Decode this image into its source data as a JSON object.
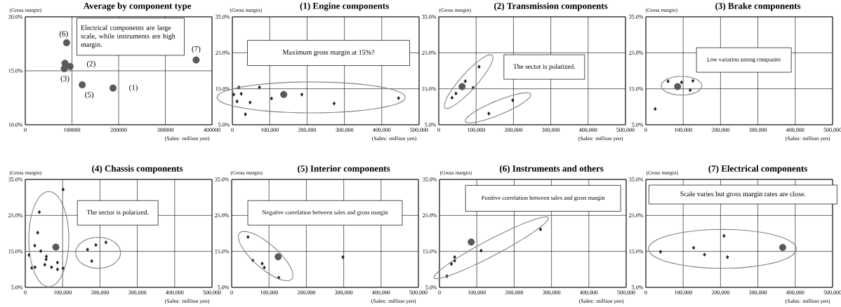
{
  "chart_data": [
    {
      "type": "scatter",
      "title": "Average by component type",
      "xlabel": "(Sales: million yen)",
      "ylabel": "(Gross margin)",
      "xlim": [
        0,
        400000
      ],
      "ylim": [
        10,
        20
      ],
      "xticks": [
        0,
        100000,
        200000,
        300000,
        400000
      ],
      "yticks": [
        {
          "value": 10,
          "label": "10.0%"
        },
        {
          "value": 15,
          "label": "15.0%"
        },
        {
          "value": 20,
          "label": "20.0%"
        }
      ],
      "grid": true,
      "series": [
        {
          "color": "#595959",
          "marker": "circle",
          "x": [
            88500,
            85000,
            96000,
            83500,
            122000,
            188000,
            366000
          ],
          "values": [
            17.6,
            15.7,
            15.4,
            15.2,
            13.7,
            13.4,
            16.0
          ]
        }
      ],
      "annotations": [
        "Electrical components are large scale, while instruments are high margin.",
        {
          "text": "(6)",
          "x": 88500,
          "y": 17.6
        },
        {
          "text": "(2)",
          "x": 96000,
          "y": 15.4
        },
        {
          "text": "(3)",
          "x": 83500,
          "y": 15.2
        },
        {
          "text": "(5)",
          "x": 122000,
          "y": 13.7
        },
        {
          "text": "(1)",
          "x": 188000,
          "y": 13.4
        },
        {
          "text": "(7)",
          "x": 366000,
          "y": 16.0
        }
      ]
    },
    {
      "type": "scatter",
      "title": "(1) Engine components",
      "xlabel": "(Sales: million yen)",
      "ylabel": "(Gross margin)",
      "xlim": [
        0,
        500000
      ],
      "ylim": [
        5,
        35
      ],
      "xticks": [
        0,
        {
          "value": 100000,
          "label": "100,000"
        },
        {
          "value": 200000,
          "label": "200,000"
        },
        {
          "value": 300000,
          "label": "300,000"
        },
        {
          "value": 400000,
          "label": "400,000"
        },
        {
          "value": 500000,
          "label": "500,000"
        }
      ],
      "yticks": [
        {
          "value": 5,
          "label": "5.0%"
        },
        {
          "value": 15,
          "label": "15.0%"
        },
        {
          "value": 25,
          "label": "25.0%"
        },
        {
          "value": 35,
          "label": "35.0%"
        }
      ],
      "grid": true,
      "series": [
        {
          "color": "#1f1f1f",
          "marker": "diamond",
          "x": [
            17500,
            72500,
            3750,
            23750,
            12500,
            47500,
            35000,
            105000,
            186000,
            272500,
            445000
          ],
          "values": [
            15.4,
            15.4,
            13.4,
            13.6,
            11.5,
            11.2,
            7.9,
            12.3,
            13.4,
            10.9,
            12.4
          ]
        },
        {
          "color": "#595959",
          "marker": "circle",
          "x": [
            137500
          ],
          "values": [
            13.4
          ]
        }
      ],
      "annotations": [
        "Maximum gross margin at 15%?"
      ]
    },
    {
      "type": "scatter",
      "title": "(2) Transmission components",
      "xlabel": "(Sales: million yen)",
      "ylabel": "(Gross margin)",
      "xlim": [
        0,
        500000
      ],
      "ylim": [
        5,
        35
      ],
      "xticks": [
        0,
        {
          "value": 100000,
          "label": "100,000"
        },
        {
          "value": 200000,
          "label": "200,000"
        },
        {
          "value": 300000,
          "label": "300,000"
        },
        {
          "value": 400000,
          "label": "400,000"
        },
        {
          "value": 500000,
          "label": "500,000"
        }
      ],
      "yticks": [
        {
          "value": 5,
          "label": "5.0%"
        },
        {
          "value": 15,
          "label": "15.0%"
        },
        {
          "value": 25,
          "label": "25.0%"
        },
        {
          "value": 35,
          "label": "35.0%"
        }
      ],
      "grid": true,
      "series": [
        {
          "color": "#1f1f1f",
          "marker": "diamond",
          "x": [
            35600,
            46000,
            71000,
            92000,
            108000,
            134000,
            198000
          ],
          "values": [
            12.5,
            13.7,
            17.1,
            15.3,
            21.1,
            8.1,
            11.8
          ]
        },
        {
          "color": "#595959",
          "marker": "circle",
          "x": [
            62500
          ],
          "values": [
            15.6
          ]
        }
      ],
      "annotations": [
        "The sector is polarized."
      ]
    },
    {
      "type": "scatter",
      "title": "(3) Brake components",
      "xlabel": "(Sales: million yen)",
      "ylabel": "(Gross margin)",
      "xlim": [
        0,
        500000
      ],
      "ylim": [
        5,
        35
      ],
      "xticks": [
        0,
        {
          "value": 100000,
          "label": "100,000"
        },
        {
          "value": 200000,
          "label": "200,000"
        },
        {
          "value": 300000,
          "label": "300,000"
        },
        {
          "value": 400000,
          "label": "400,000"
        },
        {
          "value": 500000,
          "label": "500,000"
        }
      ],
      "yticks": [
        {
          "value": 5,
          "label": "5.0%"
        },
        {
          "value": 15,
          "label": "15.0%"
        },
        {
          "value": 25,
          "label": "25.0%"
        },
        {
          "value": 35,
          "label": "35.0%"
        }
      ],
      "grid": true,
      "series": [
        {
          "color": "#1f1f1f",
          "marker": "diamond",
          "x": [
            25000,
            59400,
            95600,
            126000,
            118750
          ],
          "values": [
            9.4,
            17.1,
            16.8,
            17.2,
            14.6
          ]
        },
        {
          "color": "#595959",
          "marker": "circle",
          "x": [
            85000
          ],
          "values": [
            15.6
          ]
        }
      ],
      "annotations": [
        "Low variation among companies"
      ]
    },
    {
      "type": "scatter",
      "title": "(4) Chassis components",
      "xlabel": "(Sales: million yen)",
      "ylabel": "(Gross margin)",
      "xlim": [
        0,
        500000
      ],
      "ylim": [
        5,
        35
      ],
      "xticks": [
        0,
        {
          "value": 100000,
          "label": "100,000"
        },
        {
          "value": 200000,
          "label": "200,000"
        },
        {
          "value": 300000,
          "label": "300,000"
        },
        {
          "value": 400000,
          "label": "400,000"
        },
        {
          "value": 500000,
          "label": "500,000"
        }
      ],
      "yticks": [
        {
          "value": 5,
          "label": "5.0%"
        },
        {
          "value": 15,
          "label": "15.0%"
        },
        {
          "value": 25,
          "label": "25.0%"
        },
        {
          "value": 35,
          "label": "35.0%"
        }
      ],
      "grid": true,
      "series": [
        {
          "color": "#1f1f1f",
          "marker": "diamond",
          "x": [
            101400,
            37700,
            33300,
            25400,
            41300,
            10100,
            56500,
            55800,
            52200,
            17400,
            26100,
            70300,
            86200,
            86200,
            101400,
            166700,
            189100,
            216000,
            178000
          ],
          "values": [
            32.2,
            25.9,
            20.2,
            16.6,
            15.1,
            14.0,
            13.6,
            12.8,
            11.3,
            10.4,
            10.6,
            10.6,
            11.9,
            10.0,
            10.3,
            15.5,
            16.8,
            17.5,
            12.3
          ]
        },
        {
          "color": "#595959",
          "marker": "circle",
          "x": [
            81900
          ],
          "values": [
            16.2
          ]
        }
      ],
      "annotations": [
        "The sector is polarized."
      ]
    },
    {
      "type": "scatter",
      "title": "(5) Interior components",
      "xlabel": "(Sales: million yen)",
      "ylabel": "(Gross margin)",
      "xlim": [
        0,
        500000
      ],
      "ylim": [
        5,
        35
      ],
      "xticks": [
        0,
        {
          "value": 100000,
          "label": "100,000"
        },
        {
          "value": 200000,
          "label": "200,000"
        },
        {
          "value": 300000,
          "label": "300,000"
        },
        {
          "value": 400000,
          "label": "400,000"
        },
        {
          "value": 500000,
          "label": "500,000"
        }
      ],
      "yticks": [
        {
          "value": 5,
          "label": "5.0%"
        },
        {
          "value": 15,
          "label": "15.0%"
        },
        {
          "value": 25,
          "label": "25.0%"
        },
        {
          "value": 35,
          "label": "35.0%"
        }
      ],
      "grid": true,
      "series": [
        {
          "color": "#1f1f1f",
          "marker": "diamond",
          "x": [
            43700,
            56600,
            81600,
            87300,
            126000,
            297800
          ],
          "values": [
            19.0,
            12.5,
            11.6,
            10.5,
            7.7,
            13.4
          ]
        },
        {
          "color": "#595959",
          "marker": "circle",
          "x": [
            124500
          ],
          "values": [
            13.5
          ]
        }
      ],
      "annotations": [
        "Negative correlation between sales and gross margin"
      ]
    },
    {
      "type": "scatter",
      "title": "(6) Instruments and others",
      "xlabel": "(Sales: million yen)",
      "ylabel": "(Gross margin)",
      "xlim": [
        0,
        500000
      ],
      "ylim": [
        5,
        35
      ],
      "xticks": [
        0,
        {
          "value": 100000,
          "label": "100,000"
        },
        {
          "value": 200000,
          "label": "200,000"
        },
        {
          "value": 300000,
          "label": "300,000"
        },
        {
          "value": 400000,
          "label": "400,000"
        },
        {
          "value": 500000,
          "label": "500,000"
        }
      ],
      "yticks": [
        {
          "value": 5,
          "label": "5.0%"
        },
        {
          "value": 15,
          "label": "15.0%"
        },
        {
          "value": 25,
          "label": "25.0%"
        },
        {
          "value": 35,
          "label": "35.0%"
        }
      ],
      "grid": true,
      "series": [
        {
          "color": "#1f1f1f",
          "marker": "diamond",
          "x": [
            20000,
            32100,
            40700,
            40700,
            111400,
            270700
          ],
          "values": [
            8.1,
            11.5,
            12.4,
            13.4,
            15.2,
            21.1
          ]
        },
        {
          "color": "#595959",
          "marker": "circle",
          "x": [
            85000
          ],
          "values": [
            17.6
          ]
        }
      ],
      "annotations": [
        "Positive correlation between sales and gross margin"
      ]
    },
    {
      "type": "scatter",
      "title": "(7) Electrical components",
      "xlabel": "(Sales: million yen)",
      "ylabel": "(Gross margin)",
      "xlim": [
        0,
        500000
      ],
      "ylim": [
        5,
        35
      ],
      "xticks": [
        0,
        {
          "value": 100000,
          "label": "100,000"
        },
        {
          "value": 200000,
          "label": "200,000"
        },
        {
          "value": 300000,
          "label": "300,000"
        },
        {
          "value": 400000,
          "label": "400,000"
        },
        {
          "value": 500000,
          "label": "500,000"
        }
      ],
      "yticks": [
        {
          "value": 5,
          "label": "5.0%"
        },
        {
          "value": 15,
          "label": "15.0%"
        },
        {
          "value": 25,
          "label": "25.0%"
        },
        {
          "value": 35,
          "label": "35.0%"
        }
      ],
      "grid": true,
      "series": [
        {
          "color": "#1f1f1f",
          "marker": "diamond",
          "x": [
            39300,
            127900,
            157100,
            209300,
            218600
          ],
          "values": [
            14.9,
            16.0,
            14.1,
            19.3,
            13.4
          ]
        },
        {
          "color": "#595959",
          "marker": "circle",
          "x": [
            366400
          ],
          "values": [
            16.1
          ]
        }
      ],
      "annotations": [
        "Scale varies but gross margin rates are close."
      ]
    }
  ]
}
